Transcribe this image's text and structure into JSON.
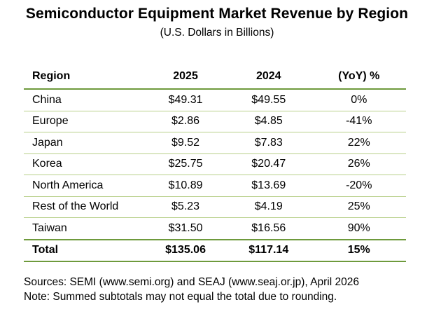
{
  "title": "Semiconductor Equipment Market Revenue by Region",
  "subtitle": "(U.S. Dollars in Billions)",
  "table": {
    "headers": [
      "Region",
      "2025",
      "2024",
      "(YoY) %"
    ],
    "rows": [
      {
        "region": "China",
        "y2025": "$49.31",
        "y2024": "$49.55",
        "yoy": "0%"
      },
      {
        "region": "Europe",
        "y2025": "$2.86",
        "y2024": "$4.85",
        "yoy": "-41%"
      },
      {
        "region": "Japan",
        "y2025": "$9.52",
        "y2024": "$7.83",
        "yoy": "22%"
      },
      {
        "region": "Korea",
        "y2025": "$25.75",
        "y2024": "$20.47",
        "yoy": "26%"
      },
      {
        "region": "North America",
        "y2025": "$10.89",
        "y2024": "$13.69",
        "yoy": "-20%"
      },
      {
        "region": "Rest of the World",
        "y2025": "$5.23",
        "y2024": "$4.19",
        "yoy": "25%"
      },
      {
        "region": "Taiwan",
        "y2025": "$31.50",
        "y2024": "$16.56",
        "yoy": "90%"
      }
    ],
    "total": {
      "region": "Total",
      "y2025": "$135.06",
      "y2024": "$117.14",
      "yoy": "15%"
    }
  },
  "footer": {
    "sources": "Sources: SEMI (www.semi.org) and SEAJ (www.seaj.or.jp), April 2026",
    "note": "Note: Summed subtotals may not equal the total due to rounding."
  },
  "colors": {
    "rule": "#6e9a3c",
    "row_rule": "#b8d08a"
  }
}
